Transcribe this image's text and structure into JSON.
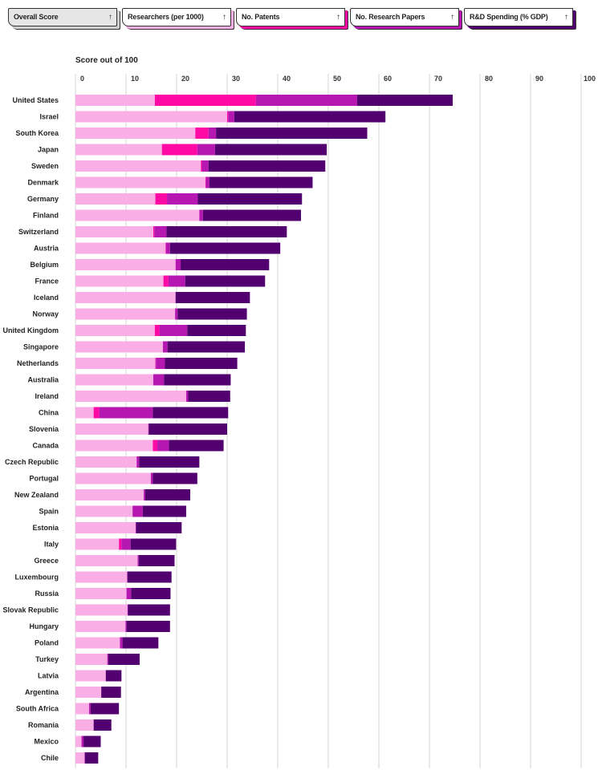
{
  "sort_buttons": [
    {
      "label": "Overall Score",
      "arrow": "↑",
      "bg": "#e6e6e6",
      "shadow": "#cfcfcf"
    },
    {
      "label": "Researchers (per 1000)",
      "arrow": "↑",
      "bg": "#ffffff",
      "shadow": "#f9aee6"
    },
    {
      "label": "No. Patents",
      "arrow": "↑",
      "bg": "#ffffff",
      "shadow": "#ff0aa5"
    },
    {
      "label": "No. Research Papers",
      "arrow": "↑",
      "bg": "#ffffff",
      "shadow": "#b517b0"
    },
    {
      "label": "R&D Spending (% GDP)",
      "arrow": "↑",
      "bg": "#ffffff",
      "shadow": "#520070"
    }
  ],
  "chart_data": {
    "type": "bar",
    "orientation": "horizontal",
    "stacked": true,
    "xlabel": "Score out of 100",
    "xlim": [
      0,
      100
    ],
    "xticks": [
      0,
      10,
      20,
      30,
      40,
      50,
      60,
      70,
      80,
      90,
      100
    ],
    "grid": true,
    "series_colors": [
      "#f9aee6",
      "#ff0aa5",
      "#b517b0",
      "#520070"
    ],
    "series": [
      {
        "name": "Researchers (per 1000)",
        "values": [
          15.7,
          30.0,
          23.7,
          17.1,
          24.8,
          25.7,
          15.8,
          24.5,
          15.4,
          17.8,
          19.8,
          17.4,
          19.8,
          19.7,
          15.7,
          17.3,
          15.8,
          15.4,
          21.9,
          3.6,
          14.4,
          15.3,
          12.1,
          14.9,
          13.5,
          11.3,
          11.9,
          8.6,
          12.3,
          10.2,
          10.1,
          10.3,
          9.9,
          8.8,
          6.3,
          6.0,
          5.1,
          2.7,
          3.6,
          1.2,
          1.8
        ]
      },
      {
        "name": "No. Patents",
        "values": [
          20.0,
          0.2,
          2.6,
          7.0,
          0.2,
          0.1,
          2.3,
          0,
          0.2,
          0.1,
          0,
          1.0,
          0,
          0,
          0.9,
          0,
          0.1,
          0,
          0,
          1.1,
          0,
          0.9,
          0,
          0,
          0,
          0,
          0,
          0.5,
          0,
          0,
          0,
          0,
          0,
          0,
          0,
          0,
          0,
          0,
          0,
          0,
          0
        ]
      },
      {
        "name": "No. Research Papers",
        "values": [
          20.0,
          1.2,
          1.5,
          3.5,
          1.3,
          0.7,
          6.1,
          0.7,
          2.4,
          0.8,
          1.0,
          3.3,
          0,
          0.5,
          5.5,
          0.9,
          1.8,
          2.1,
          0.4,
          10.6,
          0.1,
          2.3,
          0.5,
          0.4,
          0.3,
          2.0,
          0.1,
          1.8,
          0.2,
          0.1,
          0.9,
          0.1,
          0.2,
          0.5,
          0.2,
          0,
          0,
          0.3,
          0,
          0.4,
          0.1
        ]
      },
      {
        "name": "R&D Spending (% GDP)",
        "values": [
          18.9,
          29.9,
          29.9,
          22.1,
          23.1,
          20.4,
          20.6,
          19.4,
          23.8,
          21.8,
          17.5,
          15.8,
          14.7,
          13.7,
          11.6,
          15.3,
          14.3,
          13.2,
          8.3,
          14.9,
          15.5,
          10.8,
          11.9,
          8.8,
          8.9,
          8.6,
          9.0,
          9.0,
          7.1,
          8.7,
          7.8,
          8.3,
          8.6,
          7.1,
          6.2,
          3.1,
          3.9,
          5.6,
          3.5,
          3.4,
          2.6
        ]
      }
    ],
    "categories": [
      "United States",
      "Israel",
      "South Korea",
      "Japan",
      "Sweden",
      "Denmark",
      "Germany",
      "Finland",
      "Switzerland",
      "Austria",
      "Belgium",
      "France",
      "Iceland",
      "Norway",
      "United Kingdom",
      "Singapore",
      "Netherlands",
      "Australia",
      "Ireland",
      "China",
      "Slovenia",
      "Canada",
      "Czech Republic",
      "Portugal",
      "New Zealand",
      "Spain",
      "Estonia",
      "Italy",
      "Greece",
      "Luxembourg",
      "Russia",
      "Slovak Republic",
      "Hungary",
      "Poland",
      "Turkey",
      "Latvia",
      "Argentina",
      "South Africa",
      "Romania",
      "Mexico",
      "Chile"
    ]
  }
}
